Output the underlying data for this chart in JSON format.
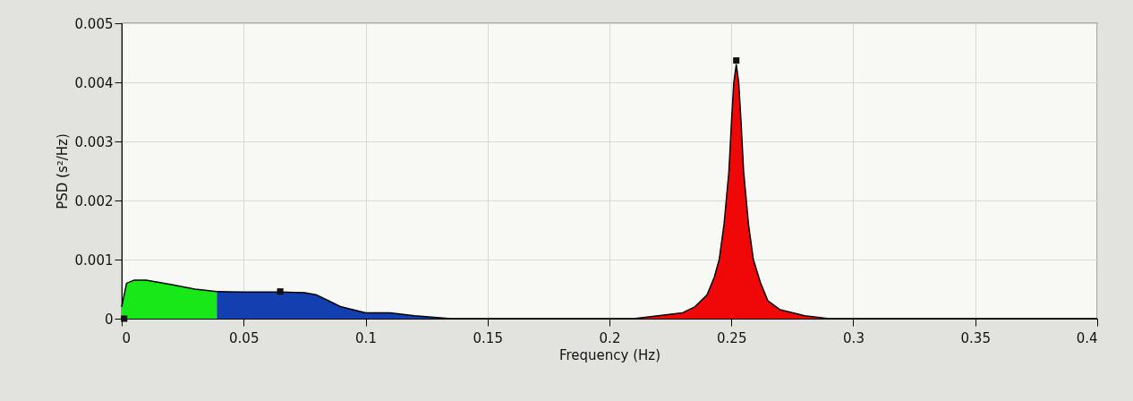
{
  "chart_data": {
    "type": "area",
    "xlabel": "Frequency (Hz)",
    "ylabel": "PSD (s²/Hz)",
    "xlim": [
      0,
      0.4
    ],
    "xticks": [
      0,
      0.05,
      0.1,
      0.15,
      0.2,
      0.25,
      0.3,
      0.35,
      0.4
    ],
    "ylim": [
      0,
      0.005
    ],
    "yticks": [
      0,
      0.001,
      0.002,
      0.003,
      0.004,
      0.005
    ],
    "grid": true,
    "series": [
      {
        "color": "#18e818",
        "x": [
          0,
          0.002,
          0.005,
          0.01,
          0.02,
          0.03,
          0.039
        ],
        "values": [
          0.0002,
          0.0006,
          0.00065,
          0.00065,
          0.00058,
          0.0005,
          0.00046
        ]
      },
      {
        "color": "#1240b0",
        "x": [
          0.039,
          0.05,
          0.065,
          0.075,
          0.08,
          0.085,
          0.09,
          0.1,
          0.11,
          0.12,
          0.135,
          0.15
        ],
        "values": [
          0.00046,
          0.00045,
          0.00045,
          0.00044,
          0.0004,
          0.0003,
          0.0002,
          0.0001,
          0.0001,
          5e-05,
          0,
          0
        ]
      },
      {
        "color": "#f00808",
        "x": [
          0.15,
          0.21,
          0.22,
          0.23,
          0.235,
          0.24,
          0.243,
          0.245,
          0.247,
          0.249,
          0.25,
          0.251,
          0.252,
          0.253,
          0.254,
          0.255,
          0.257,
          0.259,
          0.262,
          0.265,
          0.27,
          0.28,
          0.29,
          0.3,
          0.32,
          0.4
        ],
        "values": [
          0,
          0,
          5e-05,
          0.0001,
          0.0002,
          0.0004,
          0.0007,
          0.001,
          0.0016,
          0.0025,
          0.0033,
          0.004,
          0.0043,
          0.004,
          0.0033,
          0.0025,
          0.0016,
          0.001,
          0.0006,
          0.0003,
          0.00015,
          5e-05,
          0,
          0,
          0,
          0
        ]
      },
      {
        "type": "scatter",
        "color": "#111111",
        "marker": "square",
        "x": [
          0.001,
          0.065,
          0.252
        ],
        "values": [
          0,
          0.00046,
          0.00437
        ]
      }
    ]
  }
}
